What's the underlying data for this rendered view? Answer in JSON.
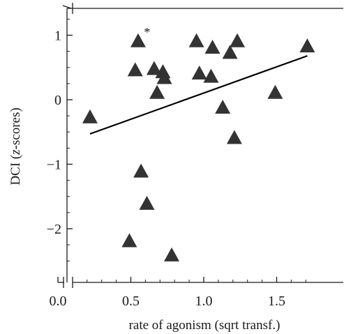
{
  "chart_data": {
    "type": "scatter",
    "title": "",
    "xlabel": "rate of agonism (sqrt transf.)",
    "ylabel_prefix": "DCI (",
    "ylabel_italic": "z",
    "ylabel_suffix": "-scores)",
    "xlim": [
      0.0,
      1.75
    ],
    "ylim": [
      -2.8,
      1.4
    ],
    "x_ticks": [
      0.0,
      0.5,
      1.0,
      1.5
    ],
    "x_tick_labels": [
      "0.0",
      "0.5",
      "1.0",
      "1.5"
    ],
    "y_ticks": [
      -2,
      -1,
      0,
      1
    ],
    "y_tick_labels": [
      "−2",
      "−1",
      "0",
      "1"
    ],
    "marker": "triangle",
    "marker_color": "#333333",
    "grid": false,
    "axis_breaks": true,
    "points": [
      {
        "x": 0.22,
        "y": -0.28
      },
      {
        "x": 0.49,
        "y": -2.2
      },
      {
        "x": 0.53,
        "y": 0.45
      },
      {
        "x": 0.55,
        "y": 0.9
      },
      {
        "x": 0.57,
        "y": -1.12
      },
      {
        "x": 0.61,
        "y": -1.62
      },
      {
        "x": 0.66,
        "y": 0.47
      },
      {
        "x": 0.68,
        "y": 0.1
      },
      {
        "x": 0.72,
        "y": 0.42
      },
      {
        "x": 0.73,
        "y": 0.33
      },
      {
        "x": 0.78,
        "y": -2.42
      },
      {
        "x": 0.95,
        "y": 0.9
      },
      {
        "x": 0.97,
        "y": 0.4
      },
      {
        "x": 1.05,
        "y": 0.35
      },
      {
        "x": 1.06,
        "y": 0.8
      },
      {
        "x": 1.13,
        "y": -0.13
      },
      {
        "x": 1.18,
        "y": 0.72
      },
      {
        "x": 1.21,
        "y": -0.6
      },
      {
        "x": 1.23,
        "y": 0.9
      },
      {
        "x": 1.49,
        "y": 0.1
      },
      {
        "x": 1.71,
        "y": 0.82
      }
    ],
    "trendline": {
      "x1": 0.22,
      "y1": -0.53,
      "x2": 1.71,
      "y2": 0.68
    },
    "annotations": [
      {
        "text": "*",
        "x": 0.6,
        "y": 1.05
      }
    ]
  }
}
